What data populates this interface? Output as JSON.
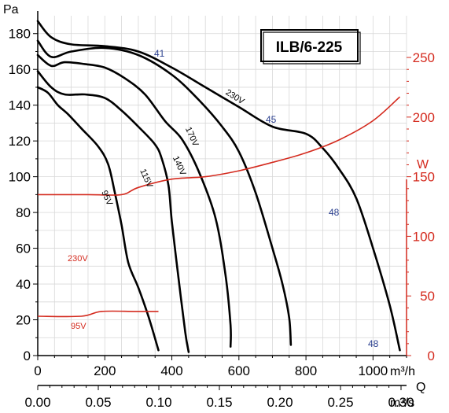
{
  "chart_data": {
    "type": "line",
    "title": "ILB/6-225",
    "y_left": {
      "unit": "Pa",
      "range": [
        0,
        190
      ],
      "ticks": [
        0,
        20,
        40,
        60,
        80,
        100,
        120,
        140,
        160,
        180
      ]
    },
    "y_right": {
      "unit": "W",
      "range": [
        0,
        285
      ],
      "ticks": [
        0,
        50,
        100,
        150,
        200,
        250
      ]
    },
    "x_top": {
      "unit": "m³/h",
      "range": [
        0,
        1100
      ],
      "ticks": [
        0,
        200,
        400,
        600,
        800,
        1000
      ]
    },
    "x_bottom": {
      "unit": "m³/s",
      "label": "Q",
      "ticks": [
        "0.00",
        "0.05",
        "0.10",
        "0.15",
        "0.20",
        "0.25",
        "0.30"
      ]
    },
    "axis_labels": {
      "y_left_unit": "Pa",
      "y_right_unit": "W",
      "x_top_unit": "m³/h",
      "x_bottom_unit": "m³/s",
      "q_label": "Q"
    },
    "pressure_series": [
      {
        "name": "230V",
        "label_at": [
          235,
          143
        ],
        "points": [
          [
            0,
            187
          ],
          [
            40,
            178
          ],
          [
            100,
            174
          ],
          [
            200,
            173
          ],
          [
            300,
            170
          ],
          [
            400,
            161
          ],
          [
            500,
            150
          ],
          [
            600,
            139
          ],
          [
            700,
            128
          ],
          [
            800,
            124
          ],
          [
            850,
            116
          ],
          [
            900,
            104
          ],
          [
            950,
            88
          ],
          [
            1000,
            60
          ],
          [
            1050,
            28
          ],
          [
            1080,
            3
          ]
        ]
      },
      {
        "name": "170V",
        "label_at": [
          241,
          175
        ],
        "points": [
          [
            0,
            176
          ],
          [
            40,
            167
          ],
          [
            100,
            170
          ],
          [
            200,
            172
          ],
          [
            300,
            168
          ],
          [
            400,
            157
          ],
          [
            480,
            143
          ],
          [
            550,
            128
          ],
          [
            600,
            114
          ],
          [
            650,
            91
          ],
          [
            700,
            60
          ],
          [
            730,
            40
          ],
          [
            750,
            21
          ],
          [
            755,
            6
          ]
        ]
      },
      {
        "name": "140V",
        "label_at": [
          225,
          212
        ],
        "points": [
          [
            0,
            168
          ],
          [
            40,
            162
          ],
          [
            80,
            164
          ],
          [
            140,
            163
          ],
          [
            200,
            161
          ],
          [
            260,
            155
          ],
          [
            320,
            146
          ],
          [
            380,
            131
          ],
          [
            430,
            121
          ],
          [
            480,
            103
          ],
          [
            530,
            77
          ],
          [
            560,
            45
          ],
          [
            575,
            17
          ],
          [
            575,
            5
          ]
        ]
      },
      {
        "name": "115V",
        "label_at": [
          183,
          228
        ],
        "points": [
          [
            0,
            159
          ],
          [
            40,
            150
          ],
          [
            80,
            146
          ],
          [
            140,
            146
          ],
          [
            200,
            144
          ],
          [
            250,
            137
          ],
          [
            300,
            128
          ],
          [
            350,
            118
          ],
          [
            370,
            110
          ],
          [
            390,
            95
          ],
          [
            400,
            75
          ],
          [
            420,
            43
          ],
          [
            440,
            13
          ],
          [
            450,
            2
          ]
        ]
      },
      {
        "name": "95V",
        "label_at": [
          133,
          253
        ],
        "points": [
          [
            0,
            150
          ],
          [
            30,
            147
          ],
          [
            60,
            140
          ],
          [
            90,
            135
          ],
          [
            130,
            127
          ],
          [
            180,
            117
          ],
          [
            210,
            107
          ],
          [
            230,
            91
          ],
          [
            250,
            73
          ],
          [
            270,
            52
          ],
          [
            300,
            38
          ],
          [
            330,
            22
          ],
          [
            360,
            3
          ]
        ]
      }
    ],
    "power_series": [
      {
        "name": "230V",
        "label_at": [
          58,
          332
        ],
        "points": [
          [
            0,
            135
          ],
          [
            150,
            135
          ],
          [
            250,
            135
          ],
          [
            300,
            141
          ],
          [
            400,
            148
          ],
          [
            500,
            150
          ],
          [
            600,
            155
          ],
          [
            700,
            162
          ],
          [
            800,
            170
          ],
          [
            900,
            181
          ],
          [
            1000,
            197
          ],
          [
            1080,
            217
          ]
        ]
      },
      {
        "name": "95V",
        "label_at": [
          62,
          418
        ],
        "points": [
          [
            0,
            33
          ],
          [
            130,
            33
          ],
          [
            190,
            37
          ],
          [
            290,
            37
          ],
          [
            360,
            37
          ]
        ]
      }
    ],
    "markers": [
      {
        "text": "41",
        "pos": [
          196,
          72
        ]
      },
      {
        "text": "45",
        "pos": [
          338,
          156
        ]
      },
      {
        "text": "48",
        "pos": [
          418,
          274
        ]
      },
      {
        "text": "48",
        "pos": [
          468,
          441
        ]
      }
    ]
  }
}
